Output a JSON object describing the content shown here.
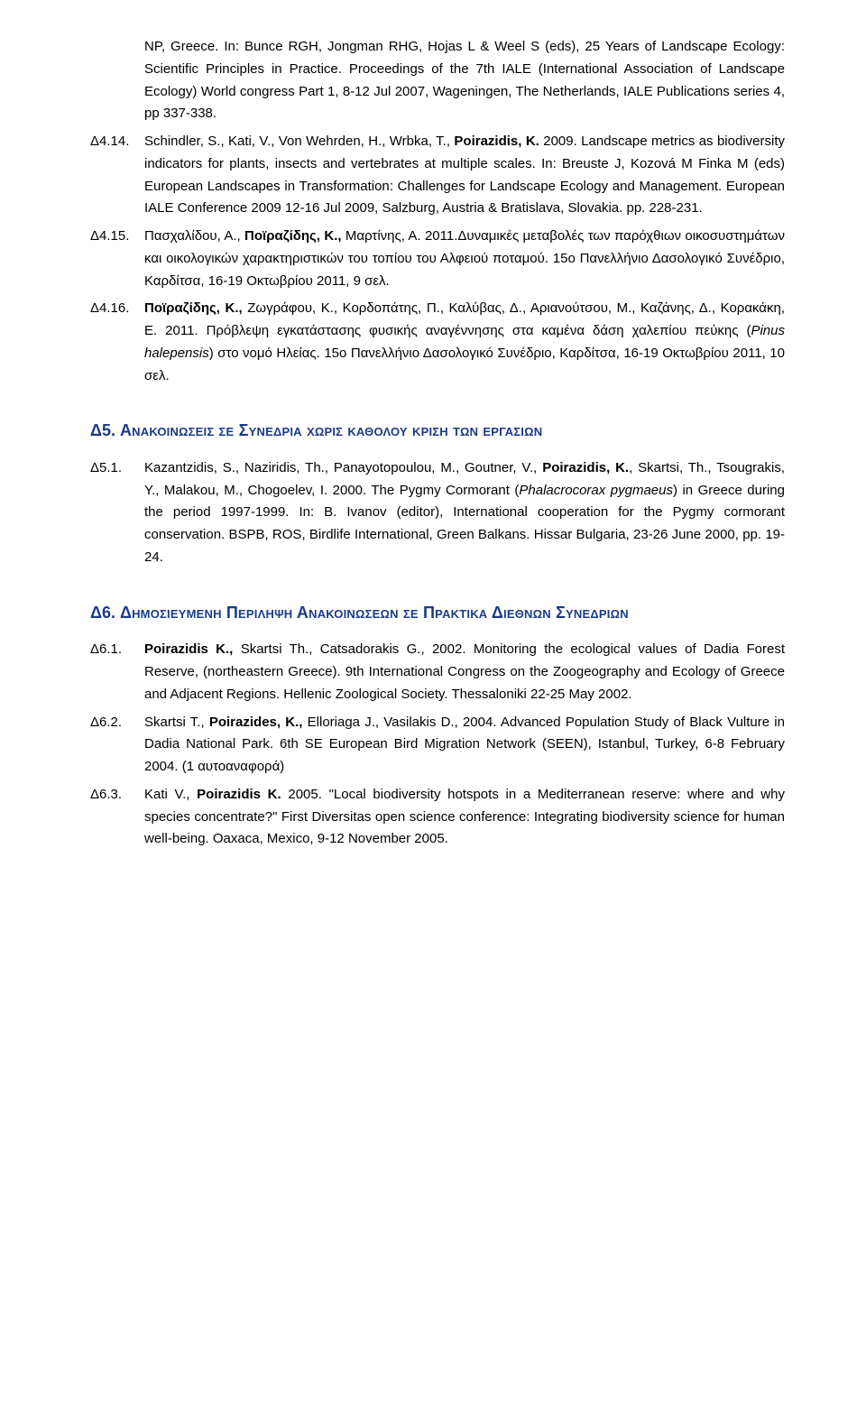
{
  "entries_top": [
    {
      "label": "",
      "html": "NP, Greece. In: Bunce RGH, Jongman RHG, Hojas L & Weel S (eds), 25 Years of Landscape Ecology: Scientific Principles in Practice. Proceedings of the 7th IALE (International Association of Landscape Ecology) World congress Part 1, 8-12 Jul 2007, Wageningen, The Netherlands, IALE Publications series 4, pp 337-338."
    },
    {
      "label": "Δ4.14.",
      "html": "Schindler, S., Kati, V., Von Wehrden, H., Wrbka, T., <span class=\"bold\">Poirazidis, K.</span> 2009. Landscape metrics as biodiversity indicators for plants, insects and vertebrates at multiple scales. In: Breuste J, Kozová M Finka M (eds) European Landscapes in Transformation: Challenges for Landscape Ecology and Management. European IALE Conference 2009 12-16 Jul 2009, Salzburg, Austria & Bratislava, Slovakia. pp. 228-231."
    },
    {
      "label": "Δ4.15.",
      "html": "Πασχαλίδου, Α., <span class=\"bold\">Ποϊραζίδης, Κ.,</span> Μαρτίνης, Α. 2011.Δυναμικές μεταβολές των παρόχθιων οικοσυστημάτων και οικολογικών χαρακτηριστικών του τοπίου του Αλφειού ποταμού. 15ο Πανελλήνιο Δασολογικό Συνέδριο, Καρδίτσα, 16-19 Οκτωβρίου 2011, 9 σελ."
    },
    {
      "label": "Δ4.16.",
      "html": "<span class=\"bold\">Ποϊραζίδης, Κ.,</span> Ζωγράφου, Κ., Κορδοπάτης, Π., Καλύβας, Δ., Αριανούτσου, Μ., Καζάνης, Δ., Κορακάκη, Ε. 2011. Πρόβλεψη εγκατάστασης φυσικής αναγέννησης στα καμένα δάση χαλεπίου πεύκης (<span class=\"italic\">Pinus halepensis</span>) στο νομό Ηλείας. 15ο Πανελλήνιο Δασολογικό Συνέδριο, Καρδίτσα, 16-19 Οκτωβρίου 2011, 10 σελ."
    }
  ],
  "heading_d5": {
    "prefix": "Δ5. ",
    "caps": "Ανακοινωσεισ σε Συνεδρια χωρισ καθολου κριση των εργασιων"
  },
  "entries_d5": [
    {
      "label": "Δ5.1.",
      "html": "Kazantzidis, S., Naziridis, Th., Panayotopoulou, M., Goutner, V., <span class=\"bold\">Poirazidis, K.</span>, Skartsi, Th., Tsougrakis, Y., Malakou, M., Chogoelev, I. 2000. The Pygmy Cormorant (<span class=\"italic\">Phalacrocorax pygmaeus</span>) in Greece during the period 1997-1999. In: B. Ivanov (editor), International cooperation for the Pygmy cormorant conservation. BSPB, ROS, Birdlife International, Green Balkans. Hissar Bulgaria, 23-26 June 2000, pp. 19-24."
    }
  ],
  "heading_d6": {
    "prefix": "Δ6. ",
    "caps": "Δημοσιευμενη Περιληψη Ανακοινωσεων σε Πρακτικα Διεθνων Συνεδριων"
  },
  "entries_d6": [
    {
      "label": "Δ6.1.",
      "html": "<span class=\"bold\">Poirazidis K.,</span> Skartsi Th., Catsadorakis G., 2002. Monitoring the ecological values of Dadia Forest Reserve, (northeastern Greece). 9th International Congress on the Zoogeography and Ecology of Greece and Adjacent Regions. Hellenic Zoological Society. Thessaloniki 22-25 May 2002."
    },
    {
      "label": "Δ6.2.",
      "html": "Skartsi T., <span class=\"bold\">Poirazides, K.,</span> Elloriaga J., Vasilakis D., 2004. Advanced Population Study of Black Vulture in Dadia National Park. 6th SE European Bird Migration Network (SEEN), Istanbul, Turkey, 6-8 February 2004. (1 αυτοαναφορά)"
    },
    {
      "label": "Δ6.3.",
      "html": "Kati V., <span class=\"bold\">Poirazidis K.</span> 2005. \"Local biodiversity hotspots in a Mediterranean reserve: where and why species concentrate?\" First Diversitas open science conference: Integrating biodiversity science for human well-being.  Oaxaca, Mexico, 9-12 November 2005."
    }
  ]
}
